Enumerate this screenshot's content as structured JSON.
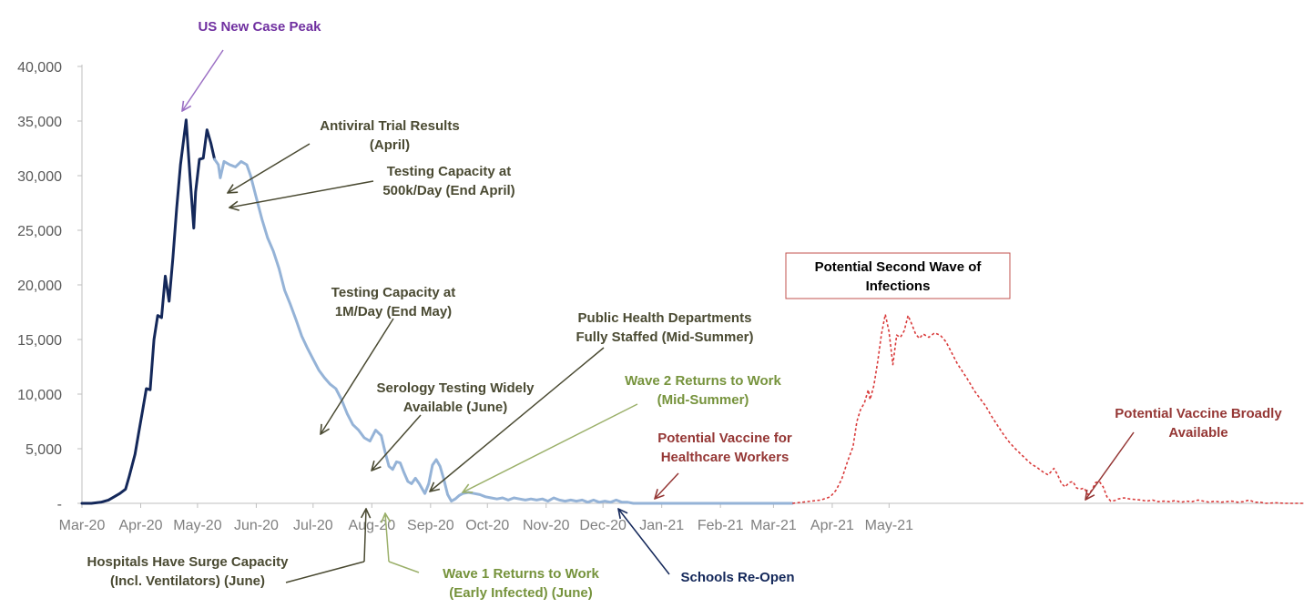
{
  "chart_data": {
    "type": "line",
    "y_ticks": [
      "-",
      "5,000",
      "10,000",
      "15,000",
      "20,000",
      "25,000",
      "30,000",
      "35,000",
      "40,000"
    ],
    "ylim": [
      0,
      40000
    ],
    "x_ticks": [
      "Mar-20",
      "Apr-20",
      "May-20",
      "Jun-20",
      "Jul-20",
      "Aug-20",
      "Sep-20",
      "Oct-20",
      "Nov-20",
      "Dec-20",
      "Jan-21",
      "Feb-21",
      "Mar-21",
      "Apr-21",
      "May-21"
    ],
    "grid": false,
    "series": [
      {
        "style": "solid",
        "color": "#14285a",
        "points": [
          [
            0,
            0
          ],
          [
            5,
            0
          ],
          [
            10,
            100
          ],
          [
            14,
            300
          ],
          [
            17,
            600
          ],
          [
            20,
            900
          ],
          [
            23,
            1300
          ],
          [
            25,
            2500
          ],
          [
            28,
            4500
          ],
          [
            30,
            6500
          ],
          [
            32,
            8500
          ],
          [
            34,
            10500
          ],
          [
            36,
            10400
          ],
          [
            38,
            15000
          ],
          [
            40,
            17200
          ],
          [
            42,
            17000
          ],
          [
            44,
            20800
          ],
          [
            46,
            18500
          ],
          [
            48,
            22500
          ],
          [
            50,
            27000
          ],
          [
            52,
            31000
          ],
          [
            55,
            35100
          ],
          [
            57,
            30000
          ],
          [
            59,
            25200
          ],
          [
            60,
            28500
          ],
          [
            62,
            31500
          ],
          [
            64,
            31600
          ],
          [
            66,
            34200
          ],
          [
            68,
            33000
          ],
          [
            70,
            31500
          ]
        ]
      },
      {
        "style": "solid",
        "color": "#95b3d7",
        "points": [
          [
            70,
            31500
          ],
          [
            72,
            31000
          ],
          [
            73,
            29800
          ],
          [
            75,
            31300
          ],
          [
            78,
            31000
          ],
          [
            81,
            30800
          ],
          [
            84,
            31300
          ],
          [
            87,
            31000
          ],
          [
            89,
            30000
          ],
          [
            92,
            28000
          ],
          [
            95,
            26000
          ],
          [
            98,
            24300
          ],
          [
            101,
            23100
          ],
          [
            104,
            21500
          ],
          [
            107,
            19500
          ],
          [
            110,
            18200
          ],
          [
            113,
            16800
          ],
          [
            116,
            15300
          ],
          [
            119,
            14200
          ],
          [
            122,
            13200
          ],
          [
            125,
            12200
          ],
          [
            128,
            11500
          ],
          [
            131,
            10900
          ],
          [
            134,
            10500
          ],
          [
            137,
            9500
          ],
          [
            140,
            8200
          ],
          [
            143,
            7200
          ],
          [
            146,
            6700
          ],
          [
            149,
            6000
          ],
          [
            152,
            5700
          ],
          [
            155,
            6700
          ],
          [
            158,
            6200
          ],
          [
            160,
            4700
          ],
          [
            162,
            3400
          ],
          [
            164,
            3100
          ],
          [
            166,
            3800
          ],
          [
            168,
            3700
          ],
          [
            170,
            2800
          ],
          [
            172,
            2000
          ],
          [
            174,
            1800
          ],
          [
            176,
            2300
          ],
          [
            178,
            1800
          ],
          [
            180,
            1200
          ],
          [
            181,
            900
          ],
          [
            183,
            1800
          ],
          [
            185,
            3500
          ],
          [
            187,
            4000
          ],
          [
            189,
            3400
          ],
          [
            191,
            2200
          ],
          [
            193,
            800
          ],
          [
            195,
            200
          ],
          [
            197,
            400
          ],
          [
            199,
            700
          ],
          [
            201,
            900
          ],
          [
            204,
            1000
          ],
          [
            207,
            900
          ],
          [
            210,
            800
          ],
          [
            213,
            600
          ],
          [
            216,
            500
          ],
          [
            219,
            400
          ],
          [
            222,
            500
          ],
          [
            225,
            300
          ],
          [
            228,
            500
          ],
          [
            231,
            400
          ],
          [
            234,
            300
          ],
          [
            237,
            400
          ],
          [
            240,
            300
          ],
          [
            243,
            400
          ],
          [
            246,
            200
          ],
          [
            249,
            500
          ],
          [
            252,
            300
          ],
          [
            255,
            200
          ],
          [
            258,
            300
          ],
          [
            261,
            200
          ],
          [
            264,
            300
          ],
          [
            267,
            100
          ],
          [
            270,
            300
          ],
          [
            273,
            100
          ],
          [
            276,
            200
          ],
          [
            279,
            100
          ],
          [
            282,
            300
          ],
          [
            285,
            100
          ],
          [
            288,
            100
          ],
          [
            291,
            0
          ],
          [
            300,
            0
          ],
          [
            330,
            0
          ],
          [
            360,
            0
          ],
          [
            375,
            0
          ]
        ]
      },
      {
        "style": "dashed",
        "color": "#d93b3b",
        "points": [
          [
            375,
            0
          ],
          [
            380,
            100
          ],
          [
            385,
            200
          ],
          [
            390,
            300
          ],
          [
            395,
            600
          ],
          [
            398,
            1200
          ],
          [
            401,
            2200
          ],
          [
            404,
            3800
          ],
          [
            407,
            5200
          ],
          [
            409,
            7500
          ],
          [
            411,
            8600
          ],
          [
            413,
            9200
          ],
          [
            415,
            10400
          ],
          [
            416,
            9500
          ],
          [
            418,
            10800
          ],
          [
            420,
            13000
          ],
          [
            422,
            15500
          ],
          [
            424,
            17300
          ],
          [
            426,
            15700
          ],
          [
            428,
            12700
          ],
          [
            430,
            15400
          ],
          [
            432,
            15200
          ],
          [
            434,
            15800
          ],
          [
            436,
            17200
          ],
          [
            438,
            16400
          ],
          [
            440,
            15500
          ],
          [
            442,
            15100
          ],
          [
            444,
            15500
          ],
          [
            447,
            15200
          ],
          [
            450,
            15600
          ],
          [
            453,
            15400
          ],
          [
            456,
            14800
          ],
          [
            459,
            13800
          ],
          [
            462,
            12800
          ],
          [
            465,
            12000
          ],
          [
            468,
            11200
          ],
          [
            471,
            10300
          ],
          [
            474,
            9600
          ],
          [
            477,
            8900
          ],
          [
            480,
            8000
          ],
          [
            483,
            7200
          ],
          [
            486,
            6400
          ],
          [
            489,
            5700
          ],
          [
            492,
            5100
          ],
          [
            495,
            4600
          ],
          [
            498,
            4100
          ],
          [
            501,
            3600
          ],
          [
            504,
            3300
          ],
          [
            507,
            2900
          ],
          [
            510,
            2600
          ],
          [
            513,
            3200
          ],
          [
            515,
            2600
          ],
          [
            517,
            1800
          ],
          [
            519,
            1500
          ],
          [
            521,
            1900
          ],
          [
            523,
            2000
          ],
          [
            525,
            1400
          ],
          [
            527,
            1300
          ],
          [
            529,
            1400
          ],
          [
            531,
            800
          ],
          [
            533,
            1200
          ],
          [
            535,
            1900
          ],
          [
            537,
            2000
          ],
          [
            539,
            1500
          ],
          [
            541,
            600
          ],
          [
            543,
            200
          ],
          [
            545,
            250
          ],
          [
            547,
            400
          ],
          [
            550,
            500
          ],
          [
            553,
            400
          ],
          [
            556,
            350
          ],
          [
            559,
            300
          ],
          [
            562,
            200
          ],
          [
            565,
            300
          ],
          [
            568,
            150
          ],
          [
            571,
            200
          ],
          [
            574,
            150
          ],
          [
            577,
            250
          ],
          [
            580,
            100
          ],
          [
            583,
            200
          ],
          [
            586,
            150
          ],
          [
            589,
            300
          ],
          [
            592,
            200
          ],
          [
            595,
            100
          ],
          [
            598,
            200
          ],
          [
            601,
            100
          ],
          [
            604,
            150
          ],
          [
            607,
            200
          ],
          [
            610,
            100
          ],
          [
            613,
            150
          ],
          [
            616,
            300
          ],
          [
            619,
            100
          ],
          [
            622,
            100
          ],
          [
            625,
            0
          ],
          [
            630,
            50
          ],
          [
            635,
            0
          ],
          [
            640,
            0
          ],
          [
            645,
            0
          ]
        ]
      }
    ],
    "annotations": [
      {
        "id": "us-peak",
        "lines": [
          "US New Case Peak"
        ],
        "color": "#7030a0"
      },
      {
        "id": "antiviral",
        "lines": [
          "Antiviral Trial Results",
          "(April)"
        ],
        "color": "#4a4a32"
      },
      {
        "id": "testing-500k",
        "lines": [
          "Testing Capacity at",
          "500k/Day (End April)"
        ],
        "color": "#4a4a32"
      },
      {
        "id": "testing-1m",
        "lines": [
          "Testing Capacity at",
          "1M/Day (End May)"
        ],
        "color": "#4a4a32"
      },
      {
        "id": "serology",
        "lines": [
          "Serology Testing Widely",
          "Available (June)"
        ],
        "color": "#4a4a32"
      },
      {
        "id": "public-health",
        "lines": [
          "Public Health Departments",
          "Fully Staffed (Mid-Summer)"
        ],
        "color": "#4a4a32"
      },
      {
        "id": "wave2",
        "lines": [
          "Wave 2 Returns to Work",
          "(Mid-Summer)"
        ],
        "color": "#76933c"
      },
      {
        "id": "vaccine-hcw",
        "lines": [
          "Potential Vaccine for",
          "Healthcare Workers"
        ],
        "color": "#953735"
      },
      {
        "id": "second-wave",
        "lines": [
          "Potential Second Wave of",
          "Infections"
        ],
        "color": "#000000"
      },
      {
        "id": "vaccine-broad",
        "lines": [
          "Potential Vaccine Broadly",
          "Available"
        ],
        "color": "#953735"
      },
      {
        "id": "hospitals",
        "lines": [
          "Hospitals Have Surge Capacity",
          "(Incl. Ventilators) (June)"
        ],
        "color": "#4a4a32"
      },
      {
        "id": "wave1",
        "lines": [
          "Wave 1 Returns to Work",
          "(Early Infected) (June)"
        ],
        "color": "#76933c"
      },
      {
        "id": "schools",
        "lines": [
          "Schools Re-Open"
        ],
        "color": "#14285a"
      }
    ]
  }
}
